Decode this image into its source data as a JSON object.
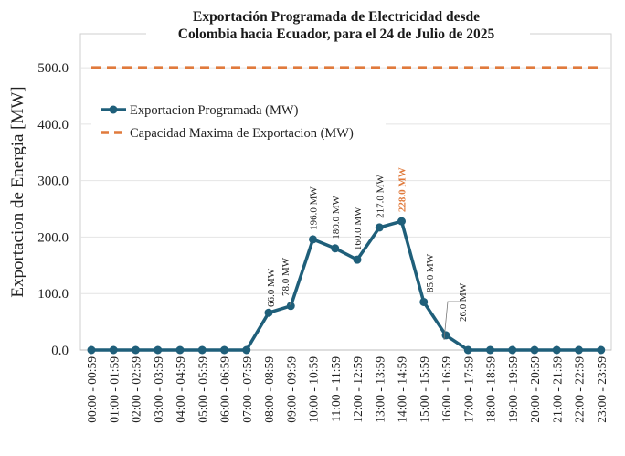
{
  "chart_data": {
    "type": "line",
    "title_lines": [
      "Exportación Programada de Electricidad desde",
      "Colombia hacia Ecuador, para el 24 de Julio de 2025"
    ],
    "xlabel": "",
    "ylabel": "Exportacion de Energia [MW]",
    "ylim": [
      0,
      560
    ],
    "yticks": [
      0,
      100,
      200,
      300,
      400,
      500
    ],
    "ytick_labels": [
      "0.0",
      "100.0",
      "200.0",
      "300.0",
      "400.0",
      "500.0"
    ],
    "grid": true,
    "legend_position": "upper-left",
    "categories": [
      "00:00 - 00:59",
      "01:00 - 01:59",
      "02:00 - 02:59",
      "03:00 - 03:59",
      "04:00 - 04:59",
      "05:00 - 05:59",
      "06:00 - 06:59",
      "07:00 - 07:59",
      "08:00 - 08:59",
      "09:00 - 09:59",
      "10:00 - 10:59",
      "11:00 - 11:59",
      "12:00 - 12:59",
      "13:00 - 13:59",
      "14:00 - 14:59",
      "15:00 - 15:59",
      "16:00 - 16:59",
      "17:00 - 17:59",
      "18:00 - 18:59",
      "19:00 - 19:59",
      "20:00 - 20:59",
      "21:00 - 21:59",
      "22:00 - 22:59",
      "23:00 - 23:59"
    ],
    "series": [
      {
        "name": "Exportacion Programada (MW)",
        "color": "#1f5f7a",
        "values": [
          0,
          0,
          0,
          0,
          0,
          0,
          0,
          0,
          66,
          78,
          196,
          180,
          160,
          217,
          228,
          85,
          26,
          0,
          0,
          0,
          0,
          0,
          0,
          0
        ]
      },
      {
        "name": "Capacidad Maxima de Exportacion (MW)",
        "color": "#e07a3c",
        "values": [
          500,
          500,
          500,
          500,
          500,
          500,
          500,
          500,
          500,
          500,
          500,
          500,
          500,
          500,
          500,
          500,
          500,
          500,
          500,
          500,
          500,
          500,
          500,
          500
        ]
      }
    ],
    "data_labels": [
      {
        "index": 8,
        "text": "66.0 MW",
        "highlight": false
      },
      {
        "index": 9,
        "text": "78.0 MW",
        "highlight": false
      },
      {
        "index": 10,
        "text": "196.0 MW",
        "highlight": false
      },
      {
        "index": 11,
        "text": "180.0 MW",
        "highlight": false
      },
      {
        "index": 12,
        "text": "160.0 MW",
        "highlight": false
      },
      {
        "index": 13,
        "text": "217.0 MW",
        "highlight": false
      },
      {
        "index": 14,
        "text": "228.0 MW",
        "highlight": true
      },
      {
        "index": 15,
        "text": "85.0 MW",
        "highlight": false
      },
      {
        "index": 16,
        "text": "26.0 MW",
        "highlight": false
      }
    ],
    "highlight_color": "#e07a3c"
  }
}
